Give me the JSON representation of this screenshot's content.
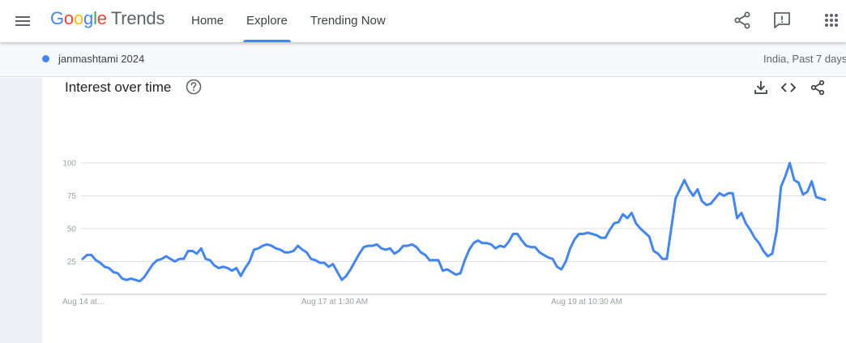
{
  "app": {
    "brand_google": [
      "G",
      "o",
      "o",
      "g",
      "l",
      "e"
    ],
    "brand_trends": "Trends"
  },
  "nav": [
    {
      "label": "Home",
      "active": false
    },
    {
      "label": "Explore",
      "active": true
    },
    {
      "label": "Trending Now",
      "active": false
    }
  ],
  "icons": {
    "menu": "menu-icon",
    "share": "share-icon",
    "feedback": "feedback-icon",
    "apps": "apps-grid-icon",
    "help": "help-icon",
    "download": "download-icon",
    "embed": "embed-icon"
  },
  "search": {
    "term": "janmashtami 2024",
    "term_color": "#4285f4",
    "region_time": "India, Past 7 days"
  },
  "card": {
    "title": "Interest over time"
  },
  "chart_data": {
    "type": "line",
    "title": "Interest over time",
    "xlabel": "",
    "ylabel": "",
    "ylim": [
      0,
      100
    ],
    "yticks": [
      100,
      75,
      50,
      25
    ],
    "xtick_labels": [
      "Aug 14 at…",
      "Aug 17 at 1:30 AM",
      "Aug 19 at 10:30 AM"
    ],
    "grid": true,
    "legend": "none",
    "series": [
      {
        "color": "#4285f4",
        "values": [
          27,
          30,
          30,
          26,
          24,
          21,
          20,
          17,
          16,
          12,
          11,
          12,
          11,
          10,
          13,
          18,
          23,
          26,
          27,
          29,
          27,
          25,
          27,
          27,
          33,
          33,
          31,
          35,
          27,
          26,
          22,
          20,
          21,
          20,
          18,
          20,
          14,
          20,
          25,
          34,
          35,
          37,
          38,
          37,
          35,
          34,
          32,
          32,
          33,
          37,
          34,
          32,
          27,
          26,
          24,
          24,
          21,
          23,
          17,
          11,
          14,
          19,
          25,
          31,
          36,
          37,
          37,
          38,
          35,
          34,
          35,
          31,
          33,
          37,
          37,
          38,
          36,
          32,
          30,
          26,
          26,
          26,
          18,
          19,
          17,
          15,
          16,
          26,
          34,
          39,
          41,
          39,
          39,
          38,
          35,
          37,
          36,
          40,
          46,
          46,
          41,
          37,
          36,
          36,
          32,
          30,
          28,
          27,
          21,
          19,
          25,
          35,
          42,
          46,
          46,
          47,
          46,
          45,
          43,
          43,
          49,
          54,
          55,
          61,
          58,
          62,
          54,
          50,
          47,
          44,
          33,
          31,
          27,
          27,
          50,
          73,
          80,
          87,
          80,
          75,
          80,
          71,
          68,
          69,
          73,
          77,
          75,
          77,
          77,
          58,
          62,
          54,
          49,
          43,
          39,
          33,
          29,
          31,
          48,
          82,
          90,
          100,
          87,
          85,
          76,
          78,
          86,
          74,
          73,
          72
        ]
      }
    ]
  }
}
